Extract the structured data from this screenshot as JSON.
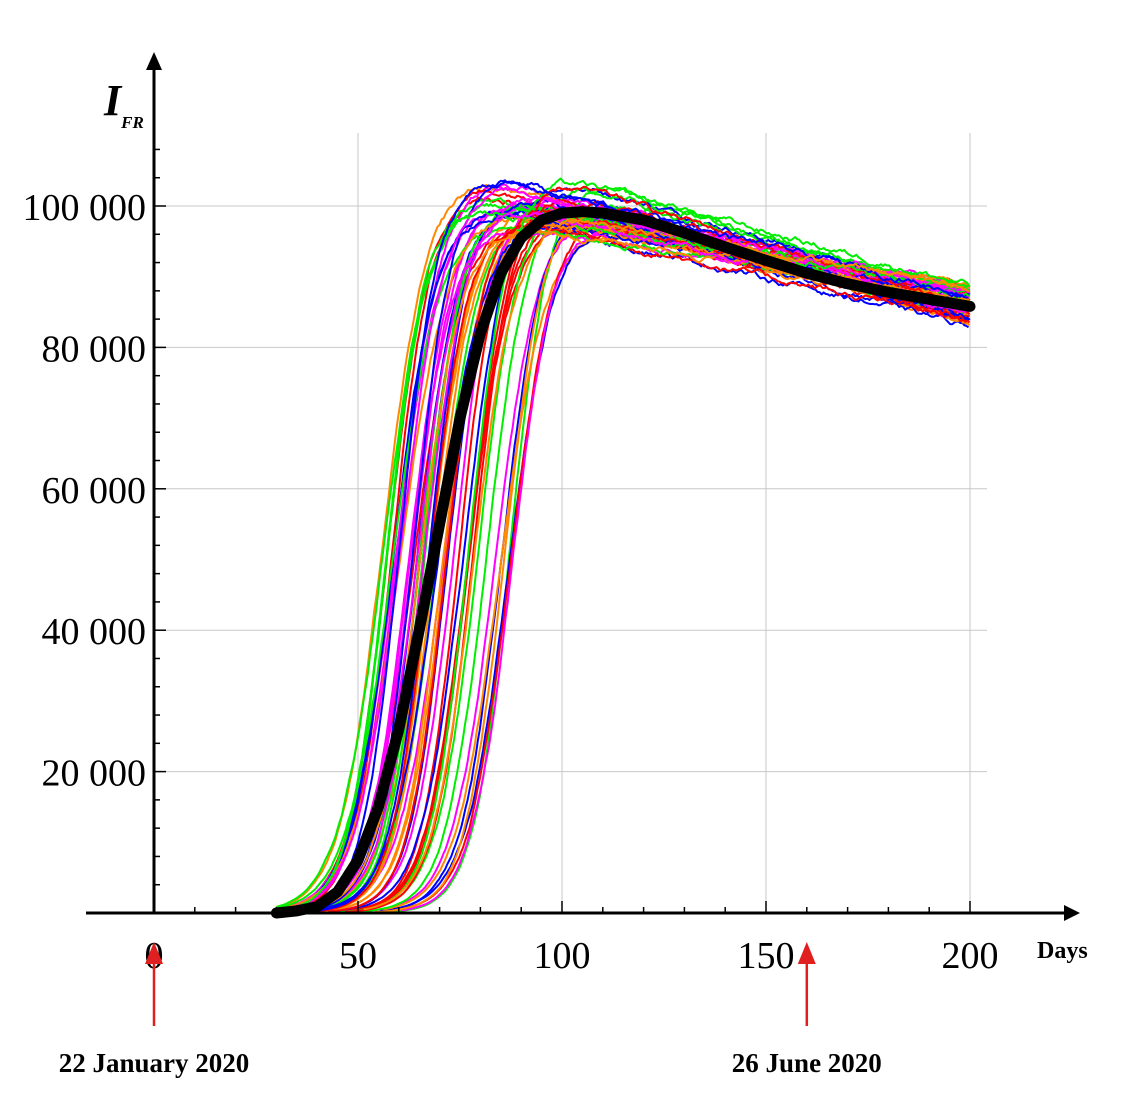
{
  "chart_data": {
    "type": "line",
    "ylabel_main": "I",
    "ylabel_sub": "FR",
    "xlabel": "Days",
    "xlim": [
      -17,
      226
    ],
    "ylim": [
      0,
      110000
    ],
    "x_ticks": [
      0,
      50,
      100,
      150,
      200
    ],
    "x_tick_labels": [
      "0",
      "50",
      "100",
      "150",
      "200"
    ],
    "y_ticks": [
      20000,
      40000,
      60000,
      80000,
      100000
    ],
    "y_tick_labels": [
      "20 000",
      "40 000",
      "60 000",
      "80 000",
      "100 000"
    ],
    "grid": true,
    "legend": "none",
    "stochastic_paths": {
      "count": 60,
      "x_start": 30,
      "x_end": 200,
      "colors": [
        "#ff0000",
        "#00ee00",
        "#0000ff",
        "#ff00ff",
        "#ff8800"
      ],
      "midpoint_range": [
        56,
        88
      ],
      "peak_range": [
        97000,
        104500
      ],
      "end_range": [
        83000,
        89000
      ]
    },
    "mean_path": {
      "color": "#000000",
      "points": [
        [
          30,
          0
        ],
        [
          35,
          300
        ],
        [
          40,
          900
        ],
        [
          45,
          3000
        ],
        [
          50,
          7500
        ],
        [
          55,
          15000
        ],
        [
          60,
          26000
        ],
        [
          65,
          40000
        ],
        [
          70,
          55000
        ],
        [
          75,
          70000
        ],
        [
          80,
          82000
        ],
        [
          85,
          90500
        ],
        [
          90,
          95500
        ],
        [
          95,
          98000
        ],
        [
          100,
          99000
        ],
        [
          105,
          99200
        ],
        [
          110,
          99000
        ],
        [
          120,
          98000
        ],
        [
          130,
          96200
        ],
        [
          140,
          94200
        ],
        [
          150,
          92300
        ],
        [
          160,
          90500
        ],
        [
          170,
          89000
        ],
        [
          180,
          87800
        ],
        [
          190,
          86800
        ],
        [
          200,
          85800
        ]
      ]
    },
    "annotations": [
      {
        "x": 0,
        "label": "22 January 2020",
        "color": "#e02020"
      },
      {
        "x": 160,
        "label": "26 June 2020",
        "color": "#e02020"
      }
    ]
  }
}
